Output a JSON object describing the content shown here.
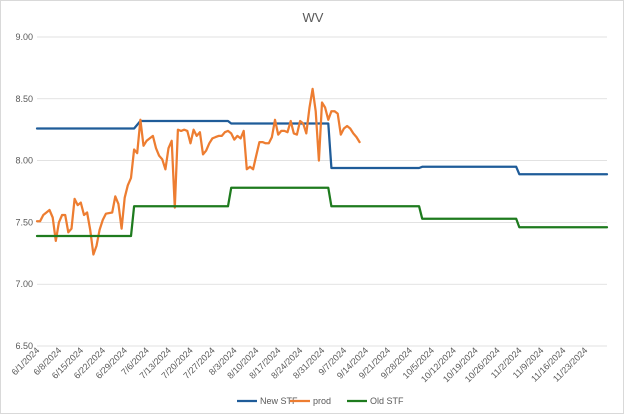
{
  "chart_data": {
    "type": "line",
    "title": "WV",
    "xlabel": "",
    "ylabel": "",
    "x_range": [
      "2024-06-01",
      "2024-11-30"
    ],
    "x_ticks": [
      "6/1/2024",
      "6/8/2024",
      "6/15/2024",
      "6/22/2024",
      "6/29/2024",
      "7/6/2024",
      "7/13/2024",
      "7/20/2024",
      "7/27/2024",
      "8/3/2024",
      "8/10/2024",
      "8/17/2024",
      "8/24/2024",
      "8/31/2024",
      "9/7/2024",
      "9/14/2024",
      "9/21/2024",
      "9/28/2024",
      "10/5/2024",
      "10/12/2024",
      "10/19/2024",
      "10/26/2024",
      "11/2/2024",
      "11/9/2024",
      "11/16/2024",
      "11/23/2024"
    ],
    "ylim": [
      6.5,
      9.0
    ],
    "y_ticks": [
      "6.50",
      "7.00",
      "7.50",
      "8.00",
      "8.50",
      "9.00"
    ],
    "grid": true,
    "legend_position": "bottom",
    "series": [
      {
        "name": "New STF",
        "color": "#1f5c99",
        "points": [
          [
            "2024-06-01",
            8.26
          ],
          [
            "2024-07-02",
            8.26
          ],
          [
            "2024-07-04",
            8.32
          ],
          [
            "2024-08-01",
            8.32
          ],
          [
            "2024-08-02",
            8.3
          ],
          [
            "2024-09-02",
            8.3
          ],
          [
            "2024-09-03",
            7.94
          ],
          [
            "2024-10-01",
            7.94
          ],
          [
            "2024-10-02",
            7.95
          ],
          [
            "2024-11-01",
            7.95
          ],
          [
            "2024-11-02",
            7.89
          ],
          [
            "2024-11-30",
            7.89
          ]
        ]
      },
      {
        "name": "prod",
        "color": "#ed7d31",
        "points": [
          [
            "2024-06-01",
            7.51
          ],
          [
            "2024-06-02",
            7.51
          ],
          [
            "2024-06-03",
            7.56
          ],
          [
            "2024-06-05",
            7.6
          ],
          [
            "2024-06-06",
            7.54
          ],
          [
            "2024-06-07",
            7.35
          ],
          [
            "2024-06-08",
            7.5
          ],
          [
            "2024-06-09",
            7.56
          ],
          [
            "2024-06-10",
            7.56
          ],
          [
            "2024-06-11",
            7.42
          ],
          [
            "2024-06-12",
            7.45
          ],
          [
            "2024-06-13",
            7.69
          ],
          [
            "2024-06-14",
            7.64
          ],
          [
            "2024-06-15",
            7.66
          ],
          [
            "2024-06-16",
            7.56
          ],
          [
            "2024-06-17",
            7.58
          ],
          [
            "2024-06-18",
            7.44
          ],
          [
            "2024-06-19",
            7.24
          ],
          [
            "2024-06-20",
            7.31
          ],
          [
            "2024-06-21",
            7.44
          ],
          [
            "2024-06-22",
            7.52
          ],
          [
            "2024-06-23",
            7.57
          ],
          [
            "2024-06-25",
            7.58
          ],
          [
            "2024-06-26",
            7.71
          ],
          [
            "2024-06-27",
            7.65
          ],
          [
            "2024-06-28",
            7.45
          ],
          [
            "2024-06-29",
            7.7
          ],
          [
            "2024-06-30",
            7.8
          ],
          [
            "2024-07-01",
            7.86
          ],
          [
            "2024-07-02",
            8.09
          ],
          [
            "2024-07-03",
            8.06
          ],
          [
            "2024-07-04",
            8.33
          ],
          [
            "2024-07-05",
            8.12
          ],
          [
            "2024-07-06",
            8.16
          ],
          [
            "2024-07-07",
            8.18
          ],
          [
            "2024-07-08",
            8.2
          ],
          [
            "2024-07-09",
            8.1
          ],
          [
            "2024-07-10",
            8.04
          ],
          [
            "2024-07-11",
            8.01
          ],
          [
            "2024-07-12",
            7.93
          ],
          [
            "2024-07-13",
            8.1
          ],
          [
            "2024-07-14",
            8.16
          ],
          [
            "2024-07-15",
            7.62
          ],
          [
            "2024-07-16",
            8.25
          ],
          [
            "2024-07-17",
            8.24
          ],
          [
            "2024-07-18",
            8.25
          ],
          [
            "2024-07-19",
            8.24
          ],
          [
            "2024-07-20",
            8.14
          ],
          [
            "2024-07-21",
            8.25
          ],
          [
            "2024-07-22",
            8.2
          ],
          [
            "2024-07-23",
            8.23
          ],
          [
            "2024-07-24",
            8.05
          ],
          [
            "2024-07-25",
            8.08
          ],
          [
            "2024-07-26",
            8.14
          ],
          [
            "2024-07-27",
            8.18
          ],
          [
            "2024-07-28",
            8.19
          ],
          [
            "2024-07-29",
            8.2
          ],
          [
            "2024-07-30",
            8.2
          ],
          [
            "2024-07-31",
            8.23
          ],
          [
            "2024-08-01",
            8.24
          ],
          [
            "2024-08-02",
            8.22
          ],
          [
            "2024-08-03",
            8.17
          ],
          [
            "2024-08-04",
            8.2
          ],
          [
            "2024-08-05",
            8.18
          ],
          [
            "2024-08-06",
            8.24
          ],
          [
            "2024-08-07",
            7.93
          ],
          [
            "2024-08-08",
            7.95
          ],
          [
            "2024-08-09",
            7.93
          ],
          [
            "2024-08-10",
            8.04
          ],
          [
            "2024-08-11",
            8.15
          ],
          [
            "2024-08-12",
            8.15
          ],
          [
            "2024-08-13",
            8.14
          ],
          [
            "2024-08-14",
            8.14
          ],
          [
            "2024-08-15",
            8.19
          ],
          [
            "2024-08-16",
            8.33
          ],
          [
            "2024-08-17",
            8.21
          ],
          [
            "2024-08-18",
            8.24
          ],
          [
            "2024-08-19",
            8.24
          ],
          [
            "2024-08-20",
            8.23
          ],
          [
            "2024-08-21",
            8.32
          ],
          [
            "2024-08-22",
            8.22
          ],
          [
            "2024-08-23",
            8.21
          ],
          [
            "2024-08-24",
            8.32
          ],
          [
            "2024-08-25",
            8.3
          ],
          [
            "2024-08-26",
            8.22
          ],
          [
            "2024-08-27",
            8.43
          ],
          [
            "2024-08-28",
            8.58
          ],
          [
            "2024-08-29",
            8.4
          ],
          [
            "2024-08-30",
            8.0
          ],
          [
            "2024-08-31",
            8.47
          ],
          [
            "2024-09-01",
            8.43
          ],
          [
            "2024-09-02",
            8.33
          ],
          [
            "2024-09-03",
            8.4
          ],
          [
            "2024-09-04",
            8.4
          ],
          [
            "2024-09-05",
            8.38
          ],
          [
            "2024-09-06",
            8.21
          ],
          [
            "2024-09-07",
            8.26
          ],
          [
            "2024-09-08",
            8.28
          ],
          [
            "2024-09-09",
            8.26
          ],
          [
            "2024-09-10",
            8.22
          ],
          [
            "2024-09-11",
            8.19
          ],
          [
            "2024-09-12",
            8.15
          ]
        ]
      },
      {
        "name": "Old STF",
        "color": "#1e7b1e",
        "points": [
          [
            "2024-06-01",
            7.39
          ],
          [
            "2024-07-01",
            7.39
          ],
          [
            "2024-07-02",
            7.63
          ],
          [
            "2024-08-01",
            7.63
          ],
          [
            "2024-08-02",
            7.78
          ],
          [
            "2024-09-02",
            7.78
          ],
          [
            "2024-09-03",
            7.63
          ],
          [
            "2024-10-01",
            7.63
          ],
          [
            "2024-10-02",
            7.53
          ],
          [
            "2024-11-01",
            7.53
          ],
          [
            "2024-11-02",
            7.46
          ],
          [
            "2024-11-30",
            7.46
          ]
        ]
      }
    ]
  }
}
